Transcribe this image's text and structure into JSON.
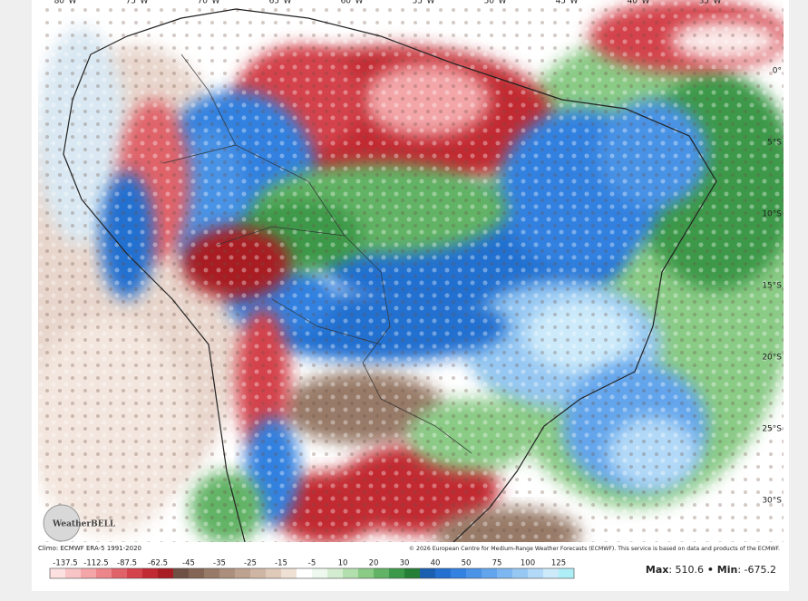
{
  "map": {
    "lon_labels": [
      "80°W",
      "75°W",
      "70°W",
      "65°W",
      "60°W",
      "55°W",
      "50°W",
      "45°W",
      "40°W",
      "35°W"
    ],
    "lat_labels": [
      "0°",
      "5°S",
      "10°S",
      "15°S",
      "20°S",
      "25°S",
      "30°S"
    ],
    "credit_left": "Climo: ECMWF ERA-5 1991-2020",
    "credit_right": "© 2026 European Centre for Medium-Range Weather Forecasts (ECMWF). This service is based on data and products of the ECMWF.",
    "logo": "WeatherBELL"
  },
  "colorbar": {
    "labels": [
      "-137.5",
      "-112.5",
      "-87.5",
      "-62.5",
      "-45",
      "-35",
      "-25",
      "-15",
      "-5",
      "10",
      "20",
      "30",
      "40",
      "50",
      "75",
      "100",
      "125"
    ],
    "colors": [
      "#fde0e0",
      "#f9c4c6",
      "#f3a5a8",
      "#ec868b",
      "#e0636a",
      "#d4434c",
      "#c22a33",
      "#a81c24",
      "#6e5044",
      "#846454",
      "#987a68",
      "#ab8e7c",
      "#bea290",
      "#cfb6a4",
      "#dfcaba",
      "#efe0d4",
      "#ffffff",
      "#eef8ee",
      "#d4edd1",
      "#b3dfae",
      "#8acb86",
      "#62b365",
      "#3d994a",
      "#267f36",
      "#1a5fb0",
      "#2470d0",
      "#3381e0",
      "#4a93e6",
      "#63a5ec",
      "#7db6f0",
      "#97c8f3",
      "#b2d9f7",
      "#cceafa",
      "#aeeef6"
    ]
  },
  "stats": {
    "max_label": "Max",
    "max_value": ": 510.6",
    "separator": " • ",
    "min_label": "Min",
    "min_value": ": -675.2"
  }
}
